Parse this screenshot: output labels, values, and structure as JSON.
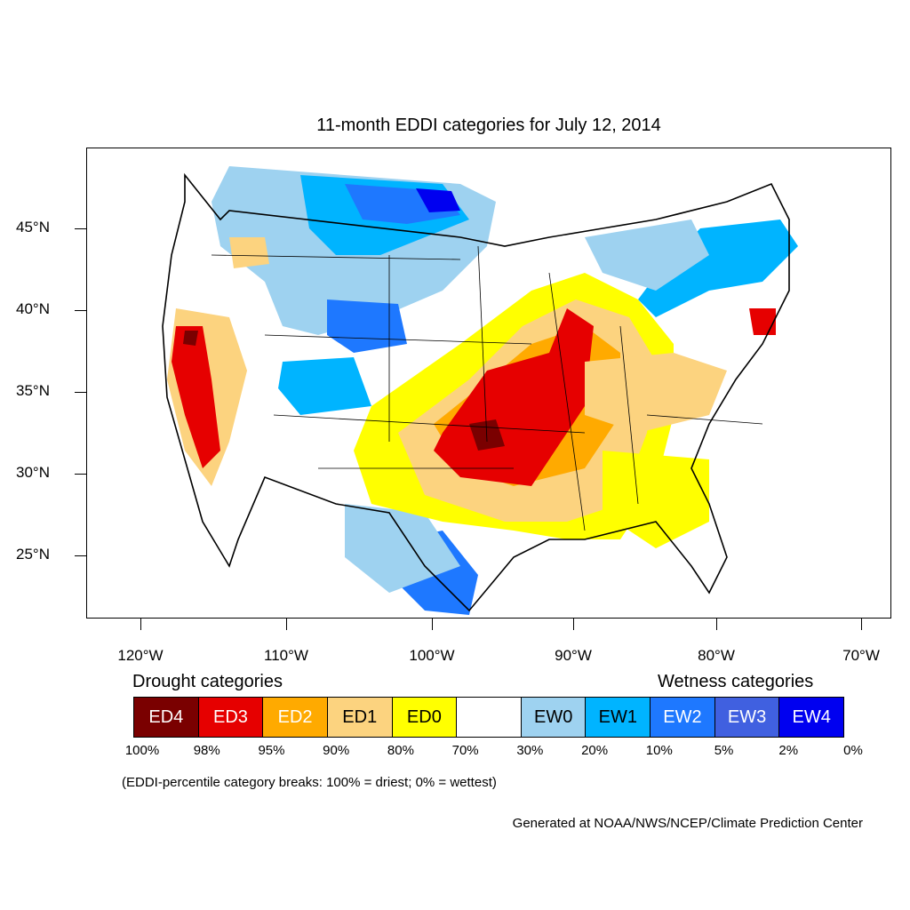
{
  "title": "11-month EDDI categories for July 12, 2014",
  "map": {
    "lat_labels": [
      "45°N",
      "40°N",
      "35°N",
      "30°N",
      "25°N"
    ],
    "lon_labels": [
      "120°W",
      "110°W",
      "100°W",
      "90°W",
      "80°W",
      "70°W"
    ]
  },
  "legend": {
    "drought_heading": "Drought categories",
    "wetness_heading": "Wetness categories",
    "categories": [
      {
        "label": "ED4",
        "color": "#7a0000",
        "text_color": "#ffffff"
      },
      {
        "label": "ED3",
        "color": "#e60000",
        "text_color": "#ffffff"
      },
      {
        "label": "ED2",
        "color": "#ffaa00",
        "text_color": "#ffffff"
      },
      {
        "label": "ED1",
        "color": "#fcd37f",
        "text_color": "#000000"
      },
      {
        "label": "ED0",
        "color": "#ffff00",
        "text_color": "#000000"
      },
      {
        "label": "",
        "color": "#ffffff",
        "text_color": "#000000"
      },
      {
        "label": "EW0",
        "color": "#9ed2f0",
        "text_color": "#000000"
      },
      {
        "label": "EW1",
        "color": "#00b4ff",
        "text_color": "#000000"
      },
      {
        "label": "EW2",
        "color": "#1e78ff",
        "text_color": "#ffffff"
      },
      {
        "label": "EW3",
        "color": "#4060e0",
        "text_color": "#ffffff"
      },
      {
        "label": "EW4",
        "color": "#0000f0",
        "text_color": "#ffffff"
      }
    ],
    "percentiles": [
      "100%",
      "98%",
      "95%",
      "90%",
      "80%",
      "70%",
      "30%",
      "20%",
      "10%",
      "5%",
      "2%",
      "0%"
    ]
  },
  "note": "(EDDI-percentile category breaks: 100% = driest; 0% = wettest)",
  "credit": "Generated at NOAA/NWS/NCEP/Climate Prediction Center"
}
